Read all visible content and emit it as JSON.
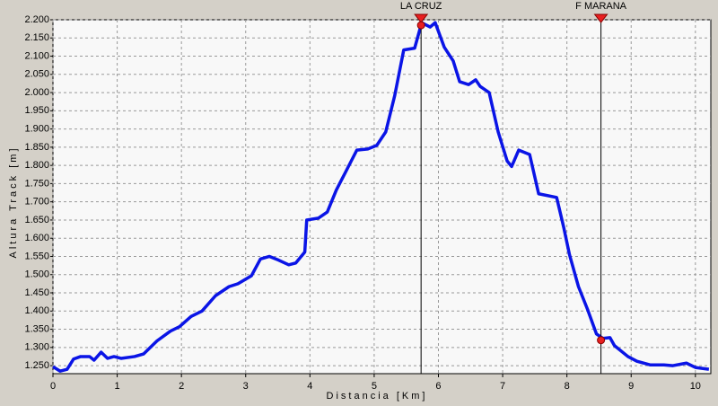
{
  "chart_data": {
    "type": "line",
    "x_label": "Distancia [Km]",
    "y_label": "Altura Track [m]",
    "xlim": [
      0,
      10.24
    ],
    "ylim": [
      1228,
      2200
    ],
    "xticks": [
      0,
      1,
      2,
      3,
      4,
      5,
      6,
      7,
      8,
      9,
      10
    ],
    "yticks": [
      {
        "value": 1250,
        "label": "1.250"
      },
      {
        "value": 1300,
        "label": "1.300"
      },
      {
        "value": 1350,
        "label": "1.350"
      },
      {
        "value": 1400,
        "label": "1.400"
      },
      {
        "value": 1450,
        "label": "1.450"
      },
      {
        "value": 1500,
        "label": "1.500"
      },
      {
        "value": 1550,
        "label": "1.550"
      },
      {
        "value": 1600,
        "label": "1.600"
      },
      {
        "value": 1650,
        "label": "1.650"
      },
      {
        "value": 1700,
        "label": "1.700"
      },
      {
        "value": 1750,
        "label": "1.750"
      },
      {
        "value": 1800,
        "label": "1.800"
      },
      {
        "value": 1850,
        "label": "1.850"
      },
      {
        "value": 1900,
        "label": "1.900"
      },
      {
        "value": 1950,
        "label": "1.950"
      },
      {
        "value": 2000,
        "label": "2.000"
      },
      {
        "value": 2050,
        "label": "2.050"
      },
      {
        "value": 2100,
        "label": "2.100"
      },
      {
        "value": 2150,
        "label": "2.150"
      },
      {
        "value": 2200,
        "label": "2.200"
      }
    ],
    "grid": true,
    "series": [
      {
        "color": "#0a14e6",
        "x": [
          0,
          0.11,
          0.22,
          0.32,
          0.43,
          0.57,
          0.64,
          0.75,
          0.85,
          0.95,
          1.06,
          1.27,
          1.41,
          1.62,
          1.83,
          1.97,
          2.15,
          2.32,
          2.53,
          2.74,
          2.88,
          3.09,
          3.23,
          3.37,
          3.51,
          3.67,
          3.78,
          3.92,
          3.95,
          4.13,
          4.27,
          4.41,
          4.55,
          4.73,
          4.9,
          5.04,
          5.18,
          5.32,
          5.46,
          5.63,
          5.74,
          5.87,
          5.95,
          6.09,
          6.23,
          6.33,
          6.47,
          6.58,
          6.65,
          6.79,
          6.93,
          7.07,
          7.14,
          7.25,
          7.42,
          7.56,
          7.84,
          7.95,
          8.04,
          8.18,
          8.32,
          8.46,
          8.56,
          8.67,
          8.74,
          8.95,
          9.09,
          9.3,
          9.51,
          9.65,
          9.86,
          10.0,
          10.21
        ],
        "values": [
          1247,
          1235,
          1240,
          1268,
          1275,
          1275,
          1265,
          1287,
          1270,
          1275,
          1270,
          1275,
          1282,
          1318,
          1345,
          1357,
          1385,
          1400,
          1442,
          1467,
          1475,
          1497,
          1543,
          1550,
          1540,
          1527,
          1532,
          1562,
          1650,
          1655,
          1672,
          1732,
          1780,
          1842,
          1845,
          1855,
          1892,
          1992,
          2117,
          2122,
          2192,
          2180,
          2192,
          2125,
          2087,
          2030,
          2022,
          2035,
          2017,
          2000,
          1892,
          1812,
          1797,
          1842,
          1830,
          1722,
          1712,
          1630,
          1555,
          1467,
          1405,
          1337,
          1325,
          1327,
          1305,
          1275,
          1262,
          1252,
          1252,
          1250,
          1257,
          1245,
          1240
        ]
      }
    ],
    "markers": [
      {
        "label": "LA CRUZ",
        "x": 5.73,
        "y": 2185,
        "color": "#e82020"
      },
      {
        "label": "F MARANA",
        "x": 8.53,
        "y": 1320,
        "color": "#e82020"
      }
    ]
  }
}
